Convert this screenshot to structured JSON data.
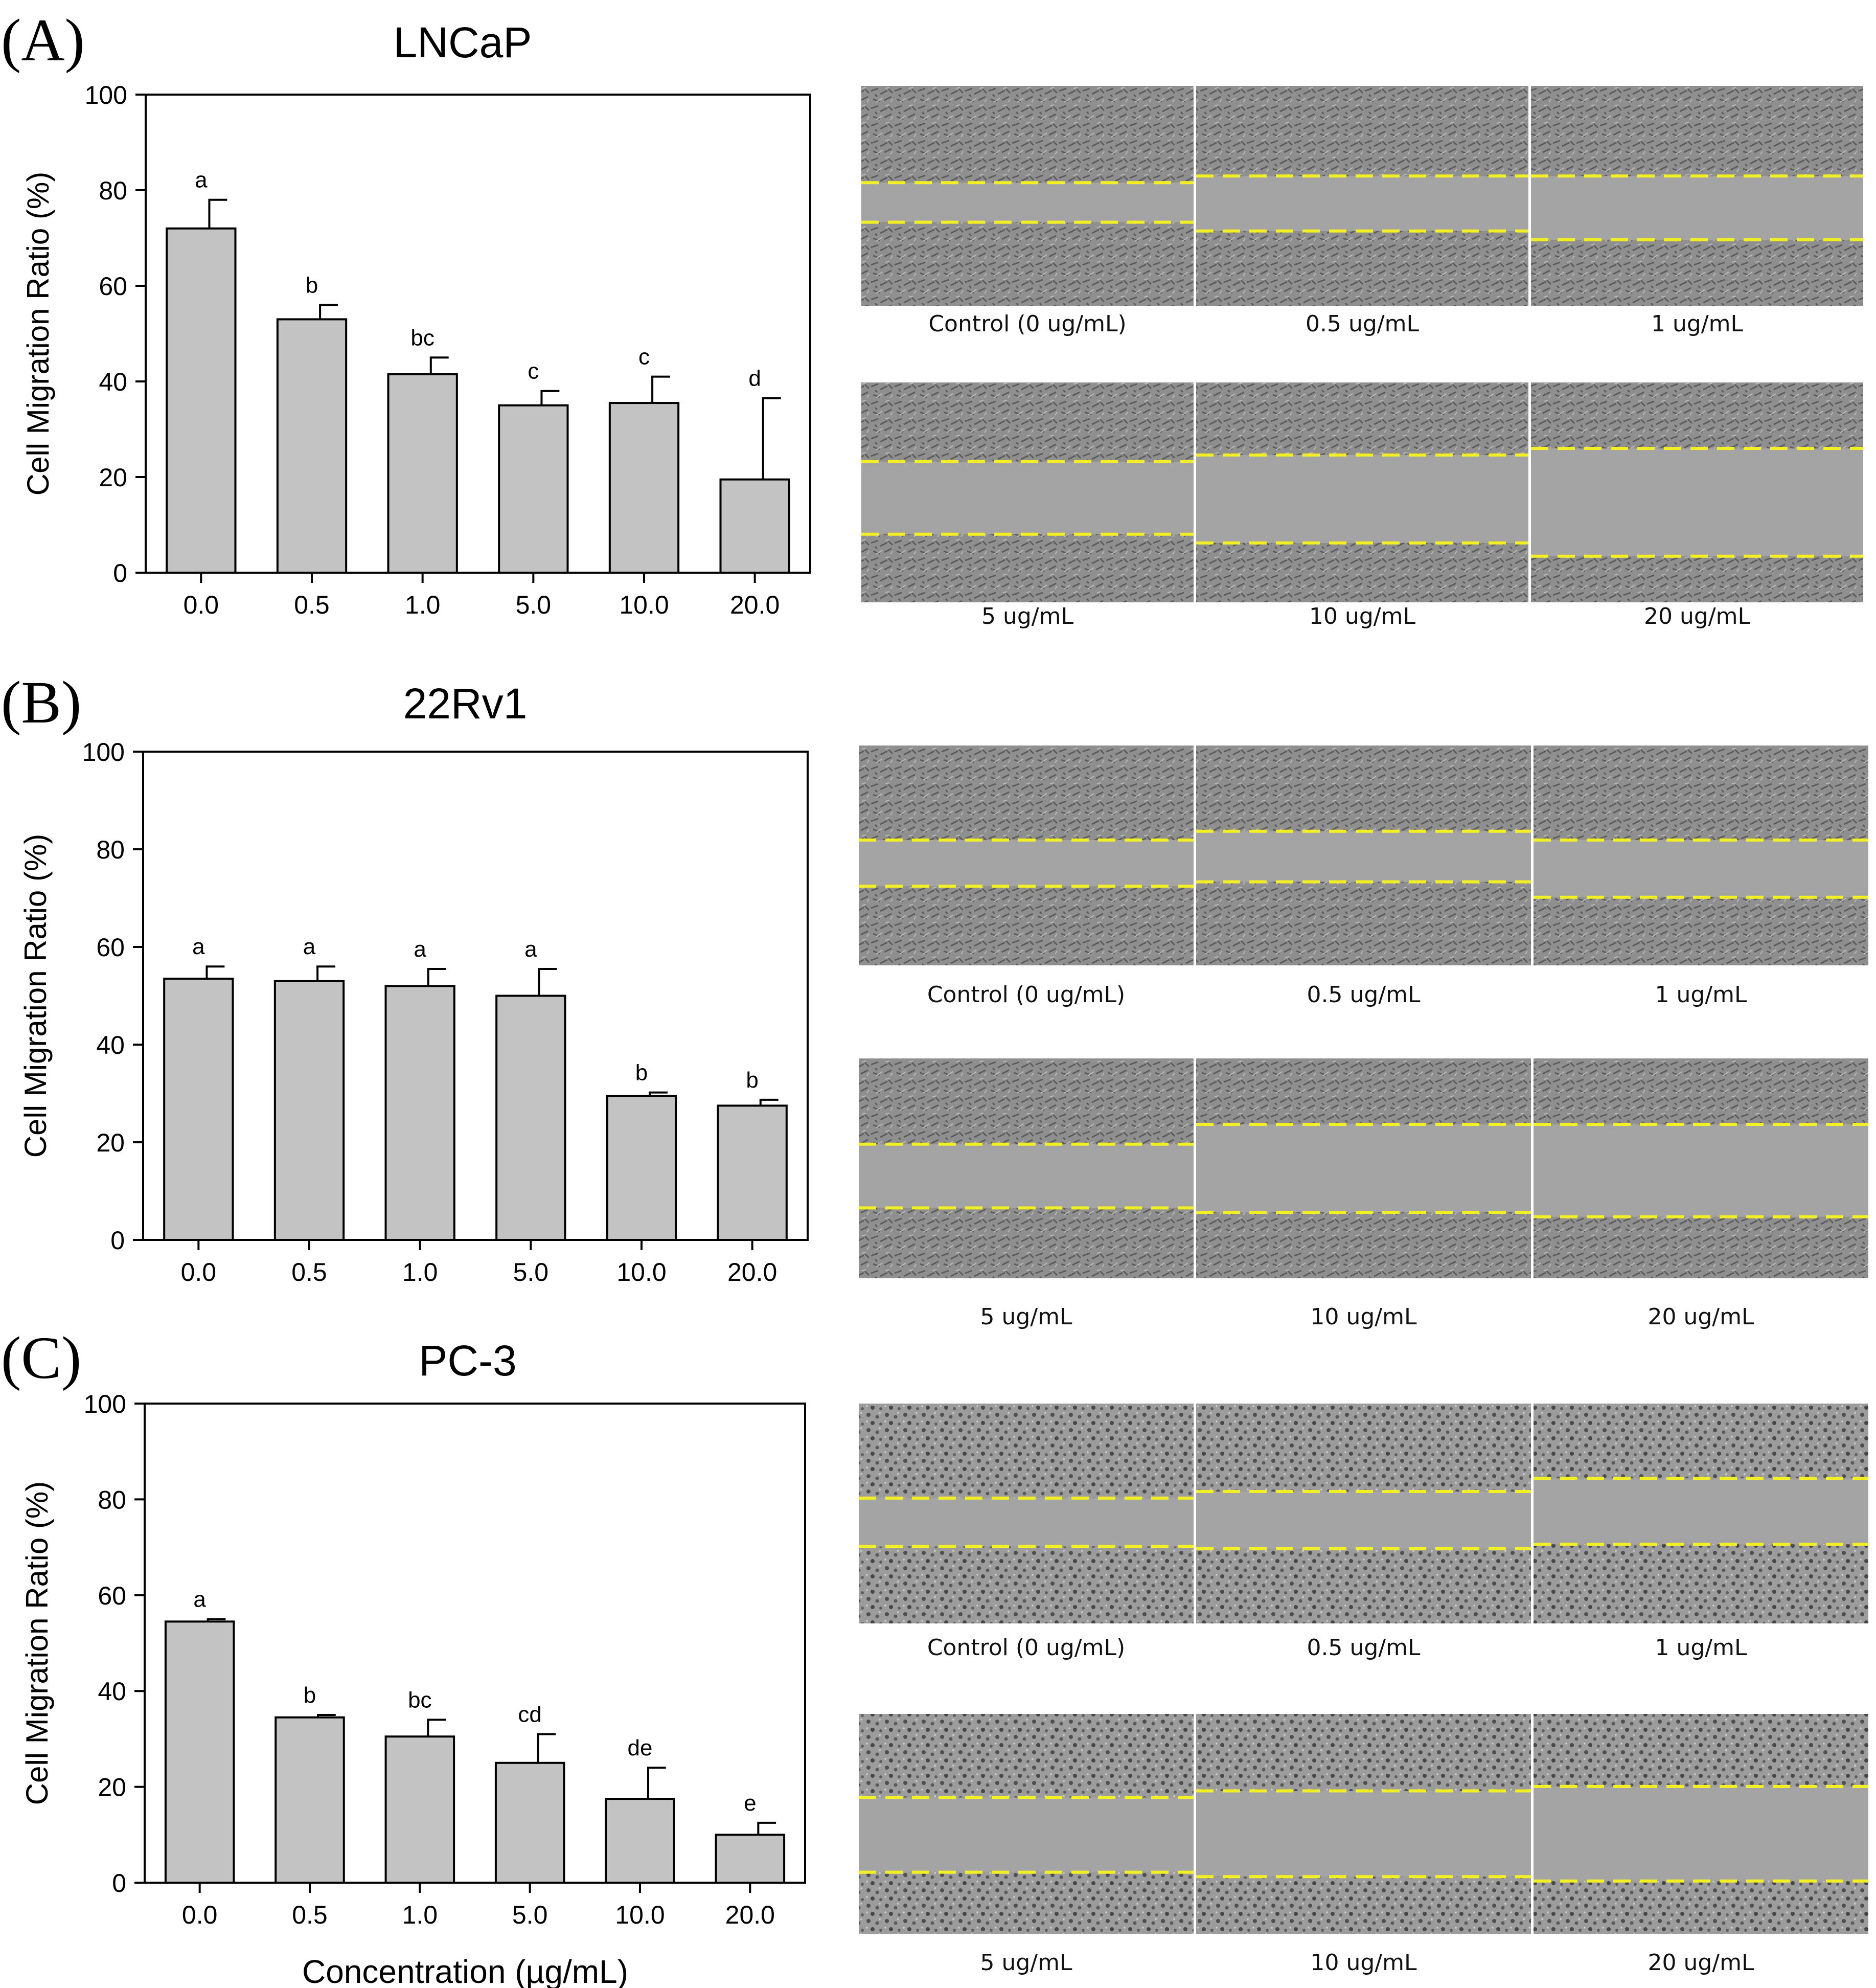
{
  "panels": [
    {
      "label": "(A)",
      "chart_data": {
        "type": "bar",
        "title": "LNCaP",
        "xlabel": "",
        "ylabel": "Cell Migration Ratio (%)",
        "ylim": [
          0,
          100
        ],
        "yticks": [
          "0",
          "20",
          "40",
          "60",
          "80",
          "100"
        ],
        "categories": [
          "0.0",
          "0.5",
          "1.0",
          "5.0",
          "10.0",
          "20.0"
        ],
        "values": [
          72,
          53,
          41.5,
          35,
          35.5,
          19.5
        ],
        "errors": [
          6,
          3,
          3.5,
          3,
          5.5,
          17
        ],
        "significance": [
          "a",
          "b",
          "bc",
          "c",
          "c",
          "d"
        ]
      },
      "images": [
        {
          "caption": "Control (0 ug/mL)",
          "cells": "elong",
          "gap_top": 0.44,
          "gap_bottom": 0.62
        },
        {
          "caption": "0.5 ug/mL",
          "cells": "elong",
          "gap_top": 0.41,
          "gap_bottom": 0.66
        },
        {
          "caption": "1 ug/mL",
          "cells": "elong",
          "gap_top": 0.41,
          "gap_bottom": 0.7
        },
        {
          "caption": "5 ug/mL",
          "cells": "elong",
          "gap_top": 0.36,
          "gap_bottom": 0.69
        },
        {
          "caption": "10 ug/mL",
          "cells": "elong",
          "gap_top": 0.33,
          "gap_bottom": 0.73
        },
        {
          "caption": "20 ug/mL",
          "cells": "elong",
          "gap_top": 0.3,
          "gap_bottom": 0.79
        }
      ]
    },
    {
      "label": "(B)",
      "chart_data": {
        "type": "bar",
        "title": "22Rv1",
        "xlabel": "",
        "ylabel": "Cell Migration Ratio (%)",
        "ylim": [
          0,
          100
        ],
        "yticks": [
          "0",
          "20",
          "40",
          "60",
          "80",
          "100"
        ],
        "categories": [
          "0.0",
          "0.5",
          "1.0",
          "5.0",
          "10.0",
          "20.0"
        ],
        "values": [
          53.5,
          53,
          52,
          50,
          29.5,
          27.5
        ],
        "errors": [
          2.5,
          3,
          3.5,
          5.5,
          0.7,
          1.2
        ],
        "significance": [
          "a",
          "a",
          "a",
          "a",
          "b",
          "b"
        ]
      },
      "images": [
        {
          "caption": "Control (0 ug/mL)",
          "cells": "elong",
          "gap_top": 0.43,
          "gap_bottom": 0.64
        },
        {
          "caption": "0.5 ug/mL",
          "cells": "elong",
          "gap_top": 0.39,
          "gap_bottom": 0.62
        },
        {
          "caption": "1 ug/mL",
          "cells": "elong",
          "gap_top": 0.43,
          "gap_bottom": 0.69
        },
        {
          "caption": "5 ug/mL",
          "cells": "elong",
          "gap_top": 0.39,
          "gap_bottom": 0.68
        },
        {
          "caption": "10 ug/mL",
          "cells": "elong",
          "gap_top": 0.3,
          "gap_bottom": 0.7
        },
        {
          "caption": "20 ug/mL",
          "cells": "elong",
          "gap_top": 0.3,
          "gap_bottom": 0.72
        }
      ]
    },
    {
      "label": "(C)",
      "chart_data": {
        "type": "bar",
        "title": "PC-3",
        "xlabel": "Concentration (µg/mL)",
        "ylabel": "Cell Migration Ratio (%)",
        "ylim": [
          0,
          100
        ],
        "yticks": [
          "0",
          "20",
          "40",
          "60",
          "80",
          "100"
        ],
        "categories": [
          "0.0",
          "0.5",
          "1.0",
          "5.0",
          "10.0",
          "20.0"
        ],
        "values": [
          54.5,
          34.5,
          30.5,
          25,
          17.5,
          10
        ],
        "errors": [
          0.5,
          0.5,
          3.5,
          6,
          6.5,
          2.5
        ],
        "significance": [
          "a",
          "b",
          "bc",
          "cd",
          "de",
          "e"
        ]
      },
      "images": [
        {
          "caption": "Control (0 ug/mL)",
          "cells": "round",
          "gap_top": 0.43,
          "gap_bottom": 0.65
        },
        {
          "caption": "0.5 ug/mL",
          "cells": "round",
          "gap_top": 0.4,
          "gap_bottom": 0.66
        },
        {
          "caption": "1 ug/mL",
          "cells": "round",
          "gap_top": 0.34,
          "gap_bottom": 0.64
        },
        {
          "caption": "5 ug/mL",
          "cells": "round",
          "gap_top": 0.38,
          "gap_bottom": 0.72
        },
        {
          "caption": "10 ug/mL",
          "cells": "round",
          "gap_top": 0.35,
          "gap_bottom": 0.74
        },
        {
          "caption": "20 ug/mL",
          "cells": "round",
          "gap_top": 0.33,
          "gap_bottom": 0.76
        }
      ]
    }
  ]
}
